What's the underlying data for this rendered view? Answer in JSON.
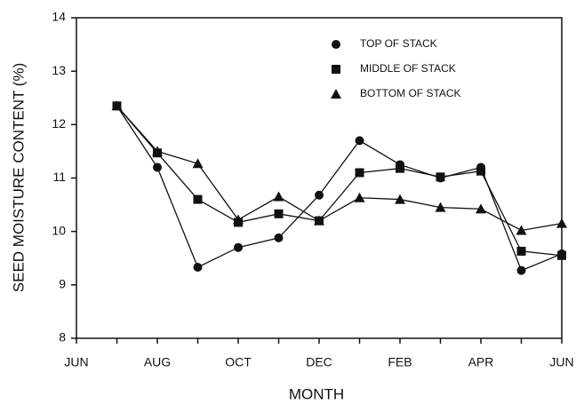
{
  "chart_data": {
    "type": "line",
    "x_label": "MONTH",
    "y_label": "SEED MOISTURE CONTENT (%)",
    "categories": [
      "JUN",
      null,
      "AUG",
      null,
      "OCT",
      null,
      "DEC",
      null,
      "FEB",
      null,
      "APR",
      null,
      "JUN"
    ],
    "ylim": [
      8,
      14
    ],
    "yticks": [
      8,
      9,
      10,
      11,
      12,
      13,
      14
    ],
    "legend": "upper right",
    "series": [
      {
        "name": "TOP OF STACK",
        "color": "#111111",
        "marker": "circle",
        "values": [
          null,
          12.35,
          11.2,
          9.33,
          9.7,
          9.88,
          10.68,
          11.7,
          11.25,
          11.0,
          11.2,
          9.27,
          9.58
        ]
      },
      {
        "name": "MIDDLE OF STACK",
        "color": "#111111",
        "marker": "square",
        "values": [
          null,
          12.35,
          11.47,
          10.6,
          10.17,
          10.33,
          10.2,
          11.1,
          11.18,
          11.02,
          11.13,
          9.63,
          9.55
        ]
      },
      {
        "name": "BOTTOM OF STACK",
        "color": "#111111",
        "marker": "triangle",
        "values": [
          null,
          12.35,
          11.5,
          11.27,
          10.22,
          10.65,
          10.2,
          10.63,
          10.6,
          10.45,
          10.42,
          10.02,
          10.15
        ]
      }
    ]
  }
}
